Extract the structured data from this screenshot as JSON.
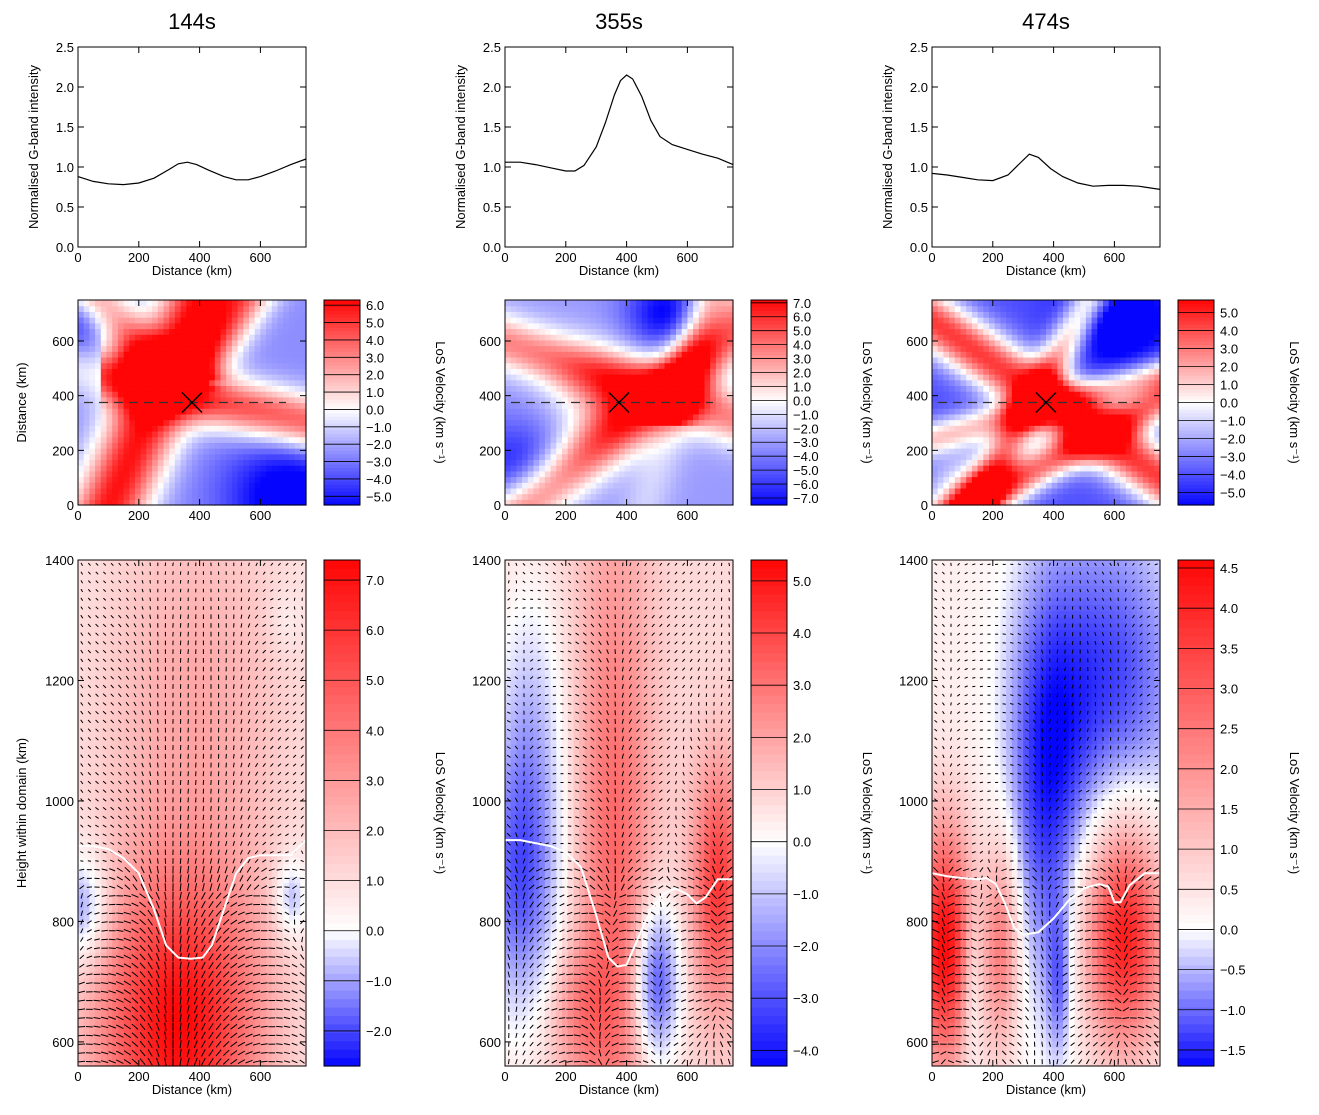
{
  "chart_data": [
    {
      "type": "line",
      "panel": "intensity",
      "column_title": "144s",
      "xlabel": "Distance (km)",
      "ylabel": "Normalised G-band intensity",
      "xlim": [
        0,
        750
      ],
      "ylim": [
        0,
        2.5
      ],
      "xticks": [
        0,
        200,
        400,
        600
      ],
      "yticks": [
        "0.0",
        "0.5",
        "1.0",
        "1.5",
        "2.0",
        "2.5"
      ],
      "x": [
        0,
        50,
        100,
        150,
        200,
        250,
        300,
        330,
        360,
        390,
        430,
        480,
        520,
        560,
        600,
        650,
        700,
        750
      ],
      "y": [
        0.88,
        0.82,
        0.79,
        0.78,
        0.8,
        0.86,
        0.97,
        1.04,
        1.06,
        1.03,
        0.96,
        0.88,
        0.84,
        0.84,
        0.88,
        0.95,
        1.03,
        1.1
      ]
    },
    {
      "type": "line",
      "panel": "intensity",
      "column_title": "355s",
      "xlabel": "Distance (km)",
      "ylabel": "Normalised G-band intensity",
      "xlim": [
        0,
        750
      ],
      "ylim": [
        0,
        2.5
      ],
      "xticks": [
        0,
        200,
        400,
        600
      ],
      "yticks": [
        "0.0",
        "0.5",
        "1.0",
        "1.5",
        "2.0",
        "2.5"
      ],
      "x": [
        0,
        50,
        100,
        150,
        200,
        230,
        260,
        300,
        330,
        360,
        380,
        400,
        420,
        450,
        480,
        510,
        550,
        600,
        650,
        700,
        750
      ],
      "y": [
        1.06,
        1.06,
        1.03,
        0.99,
        0.95,
        0.95,
        1.02,
        1.25,
        1.55,
        1.9,
        2.08,
        2.15,
        2.1,
        1.88,
        1.58,
        1.38,
        1.28,
        1.22,
        1.16,
        1.11,
        1.03
      ]
    },
    {
      "type": "line",
      "panel": "intensity",
      "column_title": "474s",
      "xlabel": "Distance (km)",
      "ylabel": "Normalised G-band intensity",
      "xlim": [
        0,
        750
      ],
      "ylim": [
        0,
        2.5
      ],
      "xticks": [
        0,
        200,
        400,
        600
      ],
      "yticks": [
        "0.0",
        "0.5",
        "1.0",
        "1.5",
        "2.0",
        "2.5"
      ],
      "x": [
        0,
        50,
        100,
        150,
        200,
        250,
        290,
        320,
        350,
        390,
        430,
        480,
        530,
        580,
        630,
        680,
        750
      ],
      "y": [
        0.92,
        0.9,
        0.87,
        0.84,
        0.83,
        0.9,
        1.05,
        1.16,
        1.12,
        0.98,
        0.88,
        0.8,
        0.76,
        0.77,
        0.77,
        0.76,
        0.72
      ]
    },
    {
      "type": "heatmap",
      "panel": "los-velocity-horizontal",
      "column_title": "144s",
      "xlabel": "",
      "ylabel": "Distance (km)",
      "xlim": [
        0,
        750
      ],
      "ylim": [
        0,
        750
      ],
      "xticks": [
        0,
        200,
        400,
        600
      ],
      "yticks": [
        0,
        200,
        400,
        600
      ],
      "marker_position": [
        375,
        375
      ],
      "slit_y": 375,
      "colorbar_label": "LoS Velocity (km s⁻¹)",
      "colorbar_ticks": [
        "6.0",
        "5.0",
        "4.0",
        "3.0",
        "2.0",
        "1.0",
        "0.0",
        "−1.0",
        "−2.0",
        "−3.0",
        "−4.0",
        "−5.0"
      ],
      "vrange": [
        -5.5,
        6.3
      ]
    },
    {
      "type": "heatmap",
      "panel": "los-velocity-horizontal",
      "column_title": "355s",
      "xlabel": "",
      "ylabel": "",
      "xlim": [
        0,
        750
      ],
      "ylim": [
        0,
        750
      ],
      "xticks": [
        0,
        200,
        400,
        600
      ],
      "yticks": [
        0,
        200,
        400,
        600
      ],
      "marker_position": [
        375,
        375
      ],
      "slit_y": 375,
      "colorbar_label": "LoS Velocity (km s⁻¹)",
      "colorbar_ticks": [
        "7.0",
        "6.0",
        "5.0",
        "4.0",
        "3.0",
        "2.0",
        "1.0",
        "0.0",
        "−1.0",
        "−2.0",
        "−3.0",
        "−4.0",
        "−5.0",
        "−6.0",
        "−7.0"
      ],
      "vrange": [
        -7.5,
        7.2
      ]
    },
    {
      "type": "heatmap",
      "panel": "los-velocity-horizontal",
      "column_title": "474s",
      "xlabel": "",
      "ylabel": "",
      "xlim": [
        0,
        750
      ],
      "ylim": [
        0,
        750
      ],
      "xticks": [
        0,
        200,
        400,
        600
      ],
      "yticks": [
        0,
        200,
        400,
        600
      ],
      "marker_position": [
        375,
        375
      ],
      "slit_y": 375,
      "colorbar_label": "LoS Velocity (km s⁻¹)",
      "colorbar_ticks": [
        "5.0",
        "4.0",
        "3.0",
        "2.0",
        "1.0",
        "0.0",
        "−1.0",
        "−2.0",
        "−3.0",
        "−4.0",
        "−5.0"
      ],
      "vrange": [
        -5.7,
        5.7
      ]
    },
    {
      "type": "heatmap",
      "panel": "los-velocity-vertical-slice",
      "column_title": "144s",
      "xlabel": "Distance (km)",
      "ylabel": "Height within domain (km)",
      "xlim": [
        0,
        750
      ],
      "ylim": [
        560,
        1400
      ],
      "xticks": [
        0,
        200,
        400,
        600
      ],
      "yticks": [
        600,
        800,
        1000,
        1200,
        1400
      ],
      "overlay": "velocity arrows; white line = tau=1 surface",
      "tau1_x": [
        0,
        50,
        100,
        150,
        200,
        250,
        290,
        330,
        370,
        410,
        440,
        480,
        520,
        560,
        600,
        650,
        700,
        750
      ],
      "tau1_y": [
        925,
        925,
        920,
        905,
        880,
        820,
        760,
        740,
        738,
        740,
        760,
        820,
        880,
        905,
        910,
        910,
        910,
        935
      ],
      "colorbar_label": "LoS Velocity (km s⁻¹)",
      "colorbar_ticks": [
        "7.0",
        "6.0",
        "5.0",
        "4.0",
        "3.0",
        "2.0",
        "1.0",
        "0.0",
        "−1.0",
        "−2.0"
      ],
      "vrange": [
        -2.7,
        7.4
      ]
    },
    {
      "type": "heatmap",
      "panel": "los-velocity-vertical-slice",
      "column_title": "355s",
      "xlabel": "Distance (km)",
      "ylabel": "",
      "xlim": [
        0,
        750
      ],
      "ylim": [
        560,
        1400
      ],
      "xticks": [
        0,
        200,
        400,
        600
      ],
      "yticks": [
        600,
        800,
        1000,
        1200,
        1400
      ],
      "overlay": "velocity arrows; white line = tau=1 surface",
      "tau1_x": [
        0,
        50,
        100,
        150,
        200,
        250,
        300,
        340,
        370,
        400,
        440,
        480,
        520,
        560,
        600,
        630,
        660,
        700,
        750
      ],
      "tau1_y": [
        935,
        935,
        930,
        925,
        915,
        890,
        810,
        740,
        725,
        728,
        775,
        820,
        845,
        855,
        845,
        830,
        840,
        870,
        870
      ],
      "colorbar_label": "LoS Velocity (km s⁻¹)",
      "colorbar_ticks": [
        "5.0",
        "4.0",
        "3.0",
        "2.0",
        "1.0",
        "0.0",
        "−1.0",
        "−2.0",
        "−3.0",
        "−4.0"
      ],
      "vrange": [
        -4.3,
        5.4
      ]
    },
    {
      "type": "heatmap",
      "panel": "los-velocity-vertical-slice",
      "column_title": "474s",
      "xlabel": "Distance (km)",
      "ylabel": "",
      "xlim": [
        0,
        750
      ],
      "ylim": [
        560,
        1400
      ],
      "xticks": [
        0,
        200,
        400,
        600
      ],
      "yticks": [
        600,
        800,
        1000,
        1200,
        1400
      ],
      "overlay": "velocity arrows; white line = tau=1 surface",
      "tau1_x": [
        0,
        50,
        100,
        150,
        180,
        210,
        240,
        270,
        300,
        350,
        400,
        450,
        500,
        550,
        580,
        600,
        620,
        650,
        700,
        750
      ],
      "tau1_y": [
        880,
        875,
        872,
        870,
        872,
        862,
        830,
        790,
        778,
        782,
        805,
        835,
        855,
        862,
        858,
        832,
        832,
        860,
        880,
        880
      ],
      "colorbar_label": "LoS Velocity (km s⁻¹)",
      "colorbar_ticks": [
        "4.5",
        "4.0",
        "3.5",
        "3.0",
        "2.5",
        "2.0",
        "1.5",
        "1.0",
        "0.5",
        "0.0",
        "−0.5",
        "−1.0",
        "−1.5"
      ],
      "vrange": [
        -1.7,
        4.6
      ]
    }
  ]
}
